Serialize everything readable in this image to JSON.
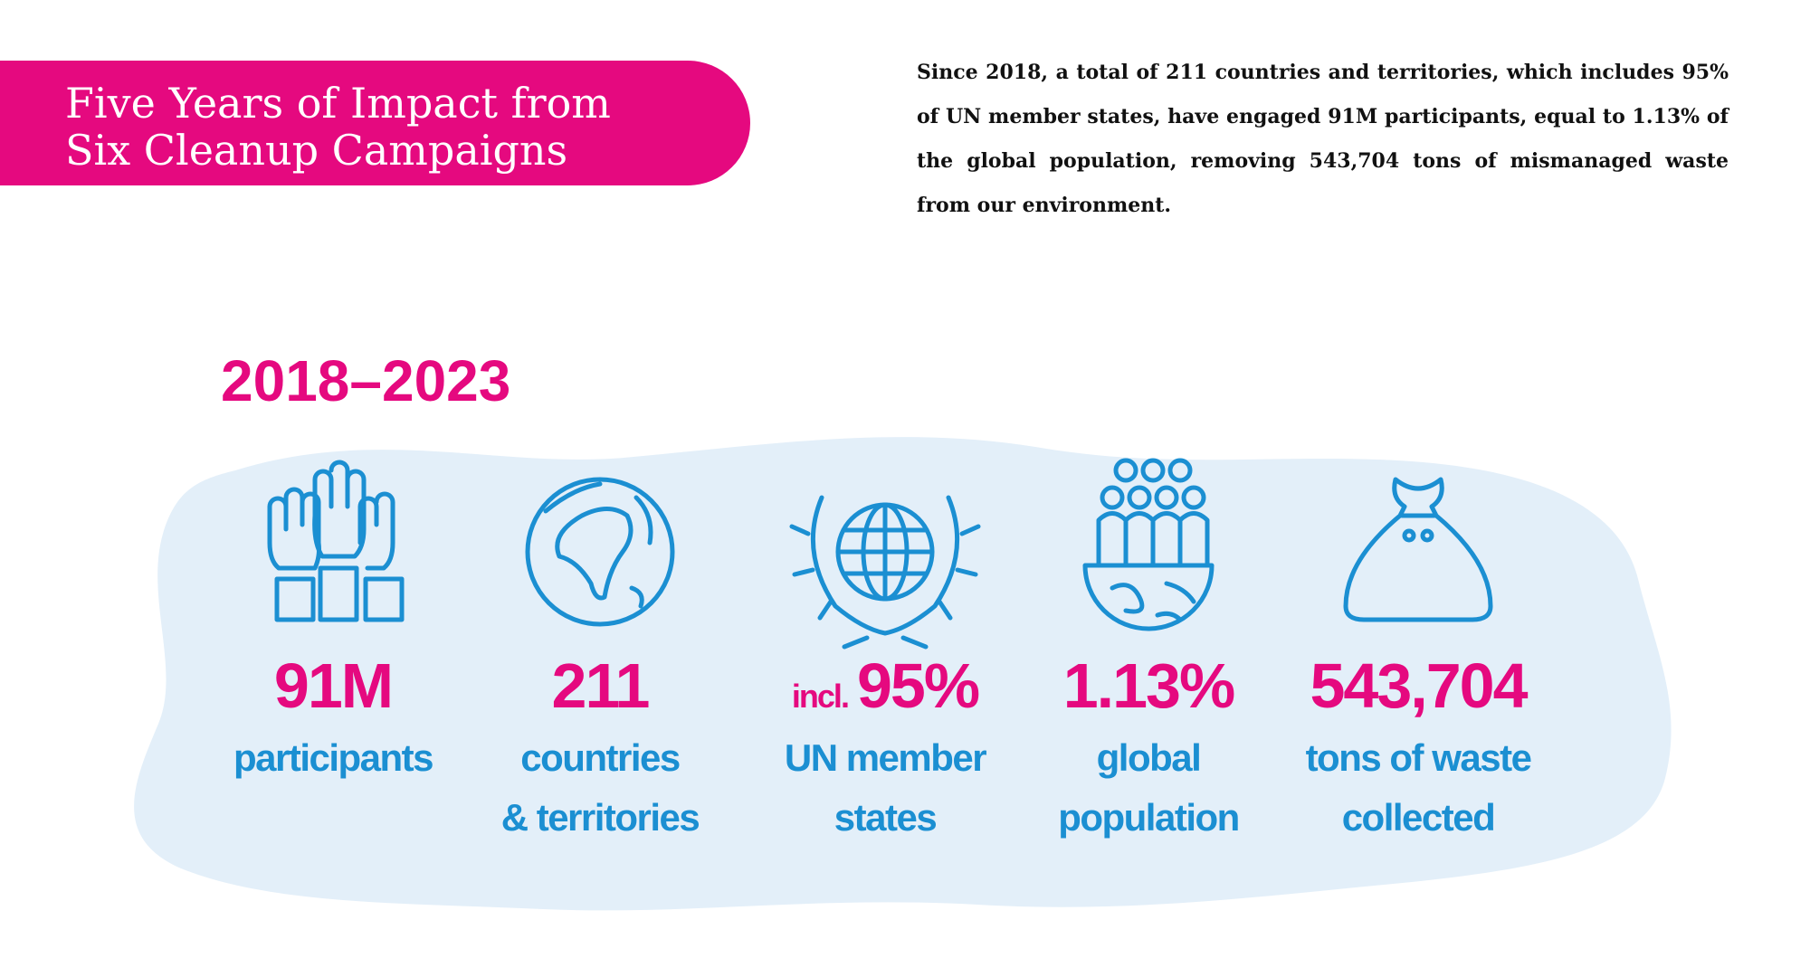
{
  "header": {
    "title_lines": [
      "Five Years of Impact from",
      "Six Cleanup Campaigns"
    ]
  },
  "summary": "Since 2018, a total of 211 countries and territories, which includes 95% of UN member states, have engaged 91M participants, equal to 1.13% of the global population, removing 543,704 tons of mismanaged waste from our environment.",
  "period": "2018–2023",
  "stats": [
    {
      "value": "91M",
      "label_lines": [
        "participants"
      ]
    },
    {
      "value": "211",
      "label_lines": [
        "countries",
        "& territories"
      ]
    },
    {
      "prefix": "incl.",
      "value": "95%",
      "label_lines": [
        "UN member",
        "states"
      ]
    },
    {
      "value": "1.13%",
      "label_lines": [
        "global",
        "population"
      ]
    },
    {
      "value": "543,704",
      "label_lines": [
        "tons of waste",
        "collected"
      ]
    }
  ]
}
